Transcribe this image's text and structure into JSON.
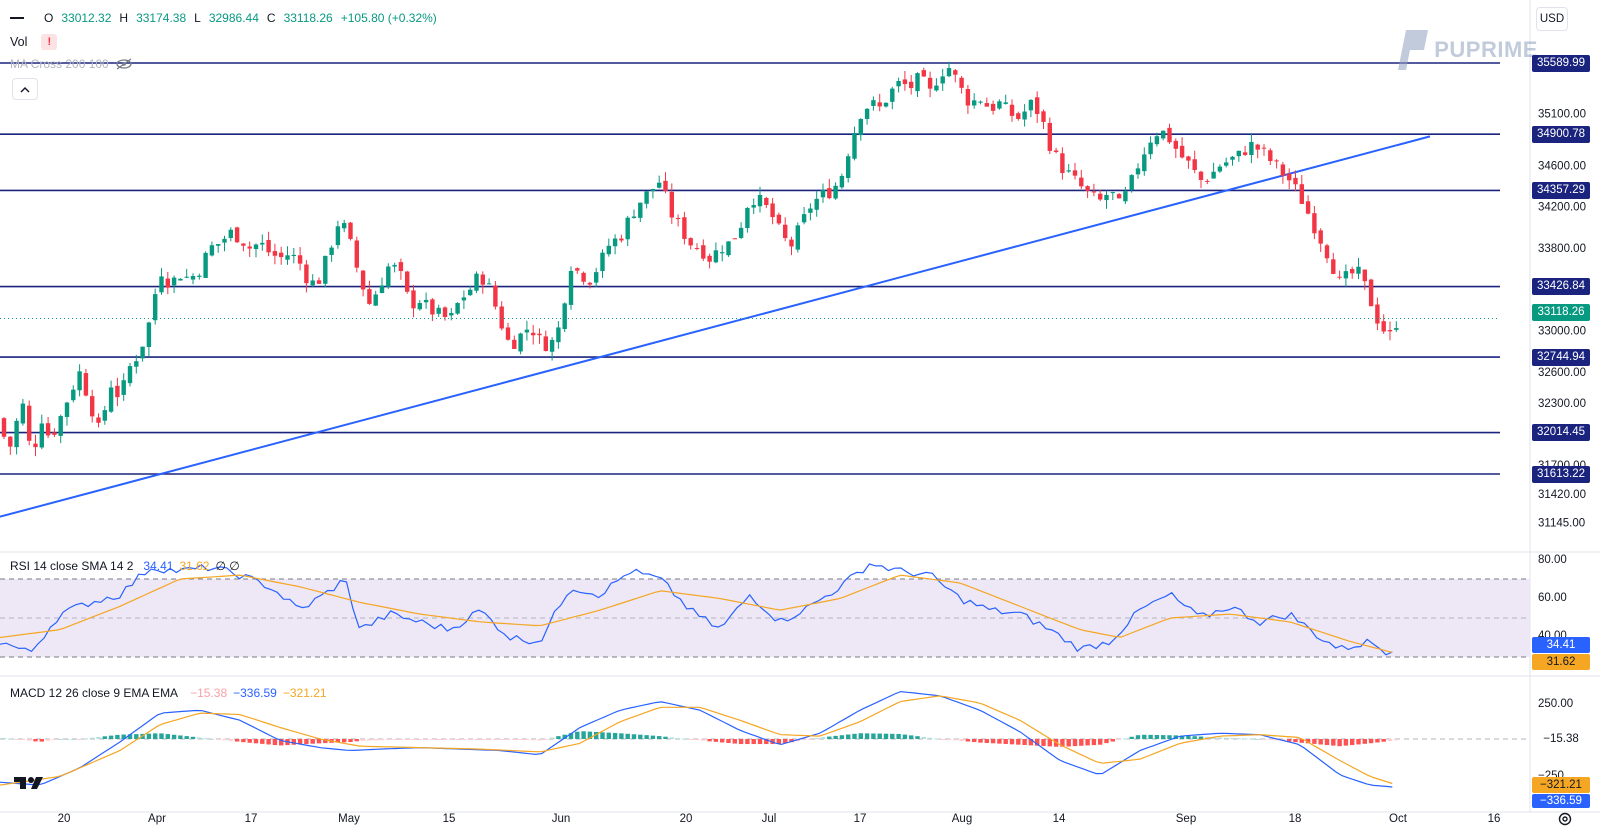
{
  "currency": "USD",
  "brand": {
    "text": "PUPRIME",
    "color": "#8fa1c0"
  },
  "ohlc": {
    "o_label": "O",
    "o": "33012.32",
    "h_label": "H",
    "h": "33174.38",
    "l_label": "L",
    "l": "32986.44",
    "c_label": "C",
    "c": "33118.26",
    "change": "+105.80 (+0.32%)"
  },
  "vol_label": "Vol",
  "ma_label": "MA Cross 200 100",
  "rsi_legend": {
    "title": "RSI 14 close SMA 14 2",
    "rsi": "34.41",
    "sma": "31.62",
    "extra": "∅ ∅"
  },
  "macd_legend": {
    "title": "MACD 12 26 close 9 EMA EMA",
    "hist": "−15.38",
    "macd": "−336.59",
    "signal": "−321.21"
  },
  "colors": {
    "up": "#089981",
    "down": "#f23645",
    "hline": "#1a237e",
    "trend": "#2962ff",
    "rsi": "#2962ff",
    "rsi_sma": "#f5a623",
    "rsi_band": "#ede7f6",
    "macd": "#2962ff",
    "signal": "#f5a623"
  },
  "horizontal_levels": [
    "35589.99",
    "34900.78",
    "34357.29",
    "33426.84",
    "32744.94",
    "32014.45",
    "31613.22"
  ],
  "last_price": "33118.26",
  "price_ticks": [
    "35100.00",
    "34600.00",
    "34200.00",
    "33800.00",
    "33000.00",
    "32600.00",
    "32300.00",
    "31700.00",
    "31420.00",
    "31145.00"
  ],
  "rsi_ticks": [
    "80.00",
    "60.00",
    "40.00"
  ],
  "rsi_labels": {
    "rsi": "34.41",
    "sma": "31.62"
  },
  "macd_ticks": [
    "250.00",
    "−250"
  ],
  "macd_labels": {
    "hist": "−15.38",
    "signal": "−321.21",
    "macd": "−336.59"
  },
  "x_ticks": [
    "20",
    "Apr",
    "17",
    "May",
    "15",
    "Jun",
    "20",
    "Jul",
    "17",
    "Aug",
    "14",
    "Sep",
    "18",
    "Oct",
    "16"
  ],
  "chart_data": {
    "type": "candlestick",
    "title": "",
    "ylim": [
      31000,
      35800
    ],
    "levels": [
      35589.99,
      34900.78,
      34357.29,
      33426.84,
      32744.94,
      32014.45,
      31613.22
    ],
    "trendline": [
      [
        0,
        31200
      ],
      [
        1430,
        34880
      ]
    ],
    "close_anchors": [
      [
        0,
        32150
      ],
      [
        8,
        31800
      ],
      [
        16,
        32100
      ],
      [
        24,
        32300
      ],
      [
        32,
        31700
      ],
      [
        40,
        32200
      ],
      [
        50,
        31950
      ],
      [
        60,
        32150
      ],
      [
        70,
        32400
      ],
      [
        80,
        32600
      ],
      [
        90,
        32300
      ],
      [
        100,
        32000
      ],
      [
        110,
        32500
      ],
      [
        120,
        32350
      ],
      [
        130,
        32650
      ],
      [
        140,
        32800
      ],
      [
        150,
        33100
      ],
      [
        160,
        33600
      ],
      [
        170,
        33450
      ],
      [
        180,
        33550
      ],
      [
        190,
        33500
      ],
      [
        200,
        33600
      ],
      [
        210,
        33800
      ],
      [
        220,
        33850
      ],
      [
        230,
        33950
      ],
      [
        240,
        33900
      ],
      [
        250,
        33800
      ],
      [
        260,
        33850
      ],
      [
        270,
        33750
      ],
      [
        280,
        33700
      ],
      [
        290,
        33750
      ],
      [
        300,
        33650
      ],
      [
        310,
        33450
      ],
      [
        320,
        33500
      ],
      [
        330,
        33800
      ],
      [
        340,
        34100
      ],
      [
        350,
        33850
      ],
      [
        360,
        33500
      ],
      [
        370,
        33250
      ],
      [
        380,
        33450
      ],
      [
        390,
        33650
      ],
      [
        400,
        33550
      ],
      [
        410,
        33250
      ],
      [
        420,
        33300
      ],
      [
        430,
        33200
      ],
      [
        440,
        33150
      ],
      [
        450,
        33100
      ],
      [
        460,
        33300
      ],
      [
        470,
        33400
      ],
      [
        480,
        33550
      ],
      [
        490,
        33400
      ],
      [
        500,
        33100
      ],
      [
        510,
        32850
      ],
      [
        520,
        32950
      ],
      [
        530,
        33050
      ],
      [
        540,
        32900
      ],
      [
        550,
        32850
      ],
      [
        560,
        33050
      ],
      [
        570,
        33650
      ],
      [
        580,
        33550
      ],
      [
        590,
        33500
      ],
      [
        600,
        33650
      ],
      [
        610,
        33850
      ],
      [
        620,
        33900
      ],
      [
        630,
        34100
      ],
      [
        640,
        34250
      ],
      [
        650,
        34350
      ],
      [
        660,
        34450
      ],
      [
        670,
        34150
      ],
      [
        680,
        34000
      ],
      [
        690,
        33850
      ],
      [
        700,
        33800
      ],
      [
        710,
        33700
      ],
      [
        720,
        33800
      ],
      [
        730,
        33850
      ],
      [
        740,
        34000
      ],
      [
        750,
        34300
      ],
      [
        760,
        34250
      ],
      [
        770,
        34150
      ],
      [
        780,
        33950
      ],
      [
        790,
        33800
      ],
      [
        800,
        34000
      ],
      [
        810,
        34200
      ],
      [
        820,
        34300
      ],
      [
        830,
        34350
      ],
      [
        840,
        34450
      ],
      [
        850,
        34800
      ],
      [
        860,
        35100
      ],
      [
        870,
        35200
      ],
      [
        880,
        35150
      ],
      [
        890,
        35300
      ],
      [
        900,
        35400
      ],
      [
        910,
        35350
      ],
      [
        920,
        35450
      ],
      [
        930,
        35300
      ],
      [
        940,
        35500
      ],
      [
        950,
        35550
      ],
      [
        960,
        35350
      ],
      [
        970,
        35200
      ],
      [
        980,
        35250
      ],
      [
        990,
        35150
      ],
      [
        1000,
        35200
      ],
      [
        1010,
        35100
      ],
      [
        1020,
        35050
      ],
      [
        1030,
        35200
      ],
      [
        1040,
        35100
      ],
      [
        1050,
        34800
      ],
      [
        1060,
        34600
      ],
      [
        1070,
        34500
      ],
      [
        1080,
        34400
      ],
      [
        1090,
        34300
      ],
      [
        1100,
        34250
      ],
      [
        1110,
        34350
      ],
      [
        1120,
        34200
      ],
      [
        1130,
        34400
      ],
      [
        1140,
        34650
      ],
      [
        1150,
        34850
      ],
      [
        1160,
        34950
      ],
      [
        1170,
        34850
      ],
      [
        1180,
        34700
      ],
      [
        1190,
        34600
      ],
      [
        1200,
        34450
      ],
      [
        1210,
        34500
      ],
      [
        1220,
        34600
      ],
      [
        1230,
        34650
      ],
      [
        1240,
        34700
      ],
      [
        1250,
        34800
      ],
      [
        1260,
        34750
      ],
      [
        1270,
        34650
      ],
      [
        1280,
        34550
      ],
      [
        1290,
        34450
      ],
      [
        1300,
        34300
      ],
      [
        1310,
        34100
      ],
      [
        1320,
        33900
      ],
      [
        1330,
        33700
      ],
      [
        1340,
        33450
      ],
      [
        1350,
        33550
      ],
      [
        1360,
        33550
      ],
      [
        1370,
        33300
      ],
      [
        1380,
        33050
      ],
      [
        1390,
        32950
      ],
      [
        1398,
        33118
      ]
    ],
    "rsi": {
      "value": 34.41,
      "sma": 31.62,
      "upper": 70,
      "mid": 50,
      "lower": 30,
      "ylim": [
        20,
        80
      ],
      "anchors": [
        [
          0,
          38
        ],
        [
          30,
          32
        ],
        [
          60,
          52
        ],
        [
          90,
          58
        ],
        [
          120,
          62
        ],
        [
          150,
          76
        ],
        [
          180,
          74
        ],
        [
          210,
          76
        ],
        [
          240,
          72
        ],
        [
          270,
          66
        ],
        [
          300,
          54
        ],
        [
          330,
          64
        ],
        [
          345,
          70
        ],
        [
          360,
          44
        ],
        [
          390,
          52
        ],
        [
          420,
          48
        ],
        [
          450,
          44
        ],
        [
          480,
          54
        ],
        [
          510,
          40
        ],
        [
          540,
          38
        ],
        [
          570,
          66
        ],
        [
          600,
          62
        ],
        [
          630,
          74
        ],
        [
          660,
          70
        ],
        [
          690,
          54
        ],
        [
          720,
          44
        ],
        [
          750,
          62
        ],
        [
          780,
          48
        ],
        [
          810,
          56
        ],
        [
          840,
          66
        ],
        [
          870,
          78
        ],
        [
          900,
          74
        ],
        [
          930,
          72
        ],
        [
          960,
          60
        ],
        [
          990,
          54
        ],
        [
          1020,
          52
        ],
        [
          1050,
          44
        ],
        [
          1080,
          34
        ],
        [
          1110,
          38
        ],
        [
          1140,
          54
        ],
        [
          1170,
          62
        ],
        [
          1200,
          50
        ],
        [
          1230,
          56
        ],
        [
          1260,
          48
        ],
        [
          1290,
          52
        ],
        [
          1320,
          40
        ],
        [
          1340,
          34
        ],
        [
          1370,
          38
        ],
        [
          1385,
          33
        ],
        [
          1398,
          34.4
        ]
      ]
    },
    "rsi_sma_anchors": [
      [
        0,
        40
      ],
      [
        60,
        44
      ],
      [
        120,
        56
      ],
      [
        180,
        70
      ],
      [
        240,
        72
      ],
      [
        300,
        66
      ],
      [
        360,
        58
      ],
      [
        420,
        52
      ],
      [
        480,
        48
      ],
      [
        540,
        46
      ],
      [
        600,
        54
      ],
      [
        660,
        64
      ],
      [
        720,
        60
      ],
      [
        780,
        54
      ],
      [
        840,
        60
      ],
      [
        900,
        72
      ],
      [
        960,
        68
      ],
      [
        1020,
        56
      ],
      [
        1080,
        44
      ],
      [
        1120,
        40
      ],
      [
        1170,
        50
      ],
      [
        1230,
        52
      ],
      [
        1290,
        48
      ],
      [
        1350,
        38
      ],
      [
        1398,
        31.6
      ]
    ],
    "macd": {
      "macd": -336.59,
      "signal": -321.21,
      "hist": -15.38,
      "ylim": [
        -400,
        320
      ],
      "macd_anchors": [
        [
          0,
          -300
        ],
        [
          40,
          -320
        ],
        [
          80,
          -200
        ],
        [
          120,
          -20
        ],
        [
          160,
          180
        ],
        [
          200,
          200
        ],
        [
          240,
          130
        ],
        [
          280,
          -10
        ],
        [
          320,
          -60
        ],
        [
          350,
          -80
        ],
        [
          380,
          -70
        ],
        [
          420,
          -60
        ],
        [
          460,
          -70
        ],
        [
          500,
          -80
        ],
        [
          540,
          -110
        ],
        [
          580,
          80
        ],
        [
          620,
          200
        ],
        [
          660,
          260
        ],
        [
          700,
          200
        ],
        [
          740,
          60
        ],
        [
          780,
          -40
        ],
        [
          820,
          40
        ],
        [
          860,
          200
        ],
        [
          900,
          330
        ],
        [
          940,
          300
        ],
        [
          980,
          200
        ],
        [
          1020,
          50
        ],
        [
          1060,
          -150
        ],
        [
          1100,
          -250
        ],
        [
          1140,
          -80
        ],
        [
          1180,
          20
        ],
        [
          1220,
          40
        ],
        [
          1260,
          30
        ],
        [
          1300,
          -40
        ],
        [
          1340,
          -250
        ],
        [
          1370,
          -320
        ],
        [
          1398,
          -336.6
        ]
      ],
      "signal_anchors": [
        [
          0,
          -320
        ],
        [
          60,
          -260
        ],
        [
          120,
          -80
        ],
        [
          160,
          100
        ],
        [
          200,
          180
        ],
        [
          240,
          170
        ],
        [
          280,
          80
        ],
        [
          320,
          0
        ],
        [
          360,
          -50
        ],
        [
          420,
          -60
        ],
        [
          480,
          -70
        ],
        [
          540,
          -90
        ],
        [
          580,
          -30
        ],
        [
          620,
          120
        ],
        [
          660,
          220
        ],
        [
          700,
          220
        ],
        [
          740,
          130
        ],
        [
          780,
          30
        ],
        [
          820,
          20
        ],
        [
          860,
          120
        ],
        [
          900,
          260
        ],
        [
          940,
          300
        ],
        [
          980,
          250
        ],
        [
          1020,
          130
        ],
        [
          1060,
          -40
        ],
        [
          1100,
          -170
        ],
        [
          1140,
          -140
        ],
        [
          1180,
          -30
        ],
        [
          1220,
          20
        ],
        [
          1260,
          30
        ],
        [
          1300,
          10
        ],
        [
          1340,
          -150
        ],
        [
          1370,
          -260
        ],
        [
          1398,
          -321.2
        ]
      ]
    }
  }
}
